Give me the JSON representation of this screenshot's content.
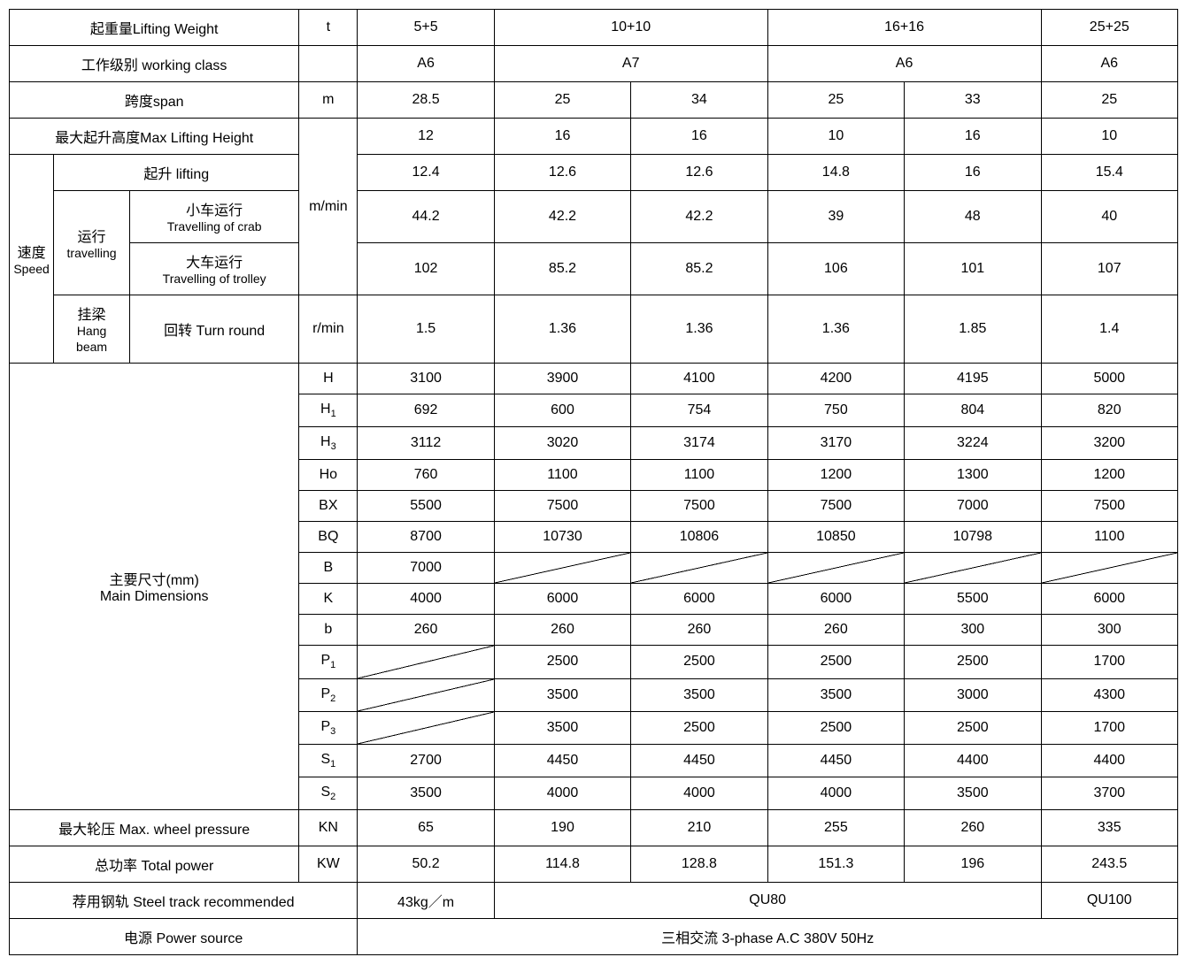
{
  "table": {
    "background_color": "#ffffff",
    "border_color": "#000000",
    "font_family": "Arial",
    "font_size": 16,
    "rows": {
      "lifting_weight": {
        "label": "起重量Lifting Weight",
        "unit": "t",
        "vals": [
          "5+5",
          "10+10",
          "16+16",
          "25+25"
        ],
        "colspans": [
          1,
          2,
          2,
          1
        ]
      },
      "working_class": {
        "label": "工作级别 working class",
        "unit": "",
        "vals": [
          "A6",
          "A7",
          "A6",
          "A6"
        ],
        "colspans": [
          1,
          2,
          2,
          1
        ]
      },
      "span": {
        "label": "跨度span",
        "unit": "m",
        "vals": [
          "28.5",
          "25",
          "34",
          "25",
          "33",
          "25"
        ]
      },
      "max_lift_height": {
        "label": "最大起升高度Max Lifting Height",
        "vals": [
          "12",
          "16",
          "16",
          "10",
          "16",
          "10"
        ]
      },
      "speed": {
        "label": "速度",
        "label_en": "Speed",
        "unit": "m/min",
        "lifting": {
          "label": "起升 lifting",
          "vals": [
            "12.4",
            "12.6",
            "12.6",
            "14.8",
            "16",
            "15.4"
          ]
        },
        "travelling": {
          "label": "运行",
          "label_en": "travelling",
          "crab": {
            "label_cn": "小车运行",
            "label_en": "Travelling of crab",
            "vals": [
              "44.2",
              "42.2",
              "42.2",
              "39",
              "48",
              "40"
            ]
          },
          "trolley": {
            "label_cn": "大车运行",
            "label_en": "Travelling of trolley",
            "vals": [
              "102",
              "85.2",
              "85.2",
              "106",
              "101",
              "107"
            ]
          }
        },
        "hang_beam": {
          "label_cn": "挂梁",
          "label_en1": "Hang",
          "label_en2": "beam",
          "turn_label": "回转 Turn round",
          "unit": "r/min",
          "vals": [
            "1.5",
            "1.36",
            "1.36",
            "1.36",
            "1.85",
            "1.4"
          ]
        }
      },
      "main_dim": {
        "label_cn": "主要尺寸(mm)",
        "label_en": "Main Dimensions",
        "H": {
          "label": "H",
          "vals": [
            "3100",
            "3900",
            "4100",
            "4200",
            "4195",
            "5000"
          ]
        },
        "H1": {
          "label": "H",
          "sub": "1",
          "vals": [
            "692",
            "600",
            "754",
            "750",
            "804",
            "820"
          ]
        },
        "H3": {
          "label": "H",
          "sub": "3",
          "vals": [
            "3112",
            "3020",
            "3174",
            "3170",
            "3224",
            "3200"
          ]
        },
        "Ho": {
          "label": "Ho",
          "vals": [
            "760",
            "1100",
            "1100",
            "1200",
            "1300",
            "1200"
          ]
        },
        "BX": {
          "label": "BX",
          "vals": [
            "5500",
            "7500",
            "7500",
            "7500",
            "7000",
            "7500"
          ]
        },
        "BQ": {
          "label": "BQ",
          "vals": [
            "8700",
            "10730",
            "10806",
            "10850",
            "10798",
            "1100"
          ]
        },
        "B": {
          "label": "B",
          "vals": [
            "7000",
            "/",
            "/",
            "/",
            "/",
            "/"
          ]
        },
        "K": {
          "label": "K",
          "vals": [
            "4000",
            "6000",
            "6000",
            "6000",
            "5500",
            "6000"
          ]
        },
        "b_": {
          "label": "b",
          "vals": [
            "260",
            "260",
            "260",
            "260",
            "300",
            "300"
          ]
        },
        "P1": {
          "label": "P",
          "sub": "1",
          "vals": [
            "/",
            "2500",
            "2500",
            "2500",
            "2500",
            "1700"
          ]
        },
        "P2": {
          "label": "P",
          "sub": "2",
          "vals": [
            "/",
            "3500",
            "3500",
            "3500",
            "3000",
            "4300"
          ]
        },
        "P3": {
          "label": "P",
          "sub": "3",
          "vals": [
            "/",
            "3500",
            "2500",
            "2500",
            "2500",
            "1700"
          ]
        },
        "S1": {
          "label": "S",
          "sub": "1",
          "vals": [
            "2700",
            "4450",
            "4450",
            "4450",
            "4400",
            "4400"
          ]
        },
        "S2": {
          "label": "S",
          "sub": "2",
          "vals": [
            "3500",
            "4000",
            "4000",
            "4000",
            "3500",
            "3700"
          ]
        }
      },
      "wheel_pressure": {
        "label": "最大轮压 Max.   wheel pressure",
        "unit": "KN",
        "vals": [
          "65",
          "190",
          "210",
          "255",
          "260",
          "335"
        ]
      },
      "total_power": {
        "label": "总功率 Total power",
        "unit": "KW",
        "vals": [
          "50.2",
          "114.8",
          "128.8",
          "151.3",
          "196",
          "243.5"
        ]
      },
      "steel_track": {
        "label": "荐用钢轨 Steel track recommended",
        "vals": [
          "43kg／m",
          "QU80",
          "QU100"
        ],
        "colspans": [
          1,
          4,
          1
        ]
      },
      "power_source": {
        "label": "电源 Power source",
        "val": "三相交流  3-phase   A.C   380V   50Hz"
      }
    }
  }
}
